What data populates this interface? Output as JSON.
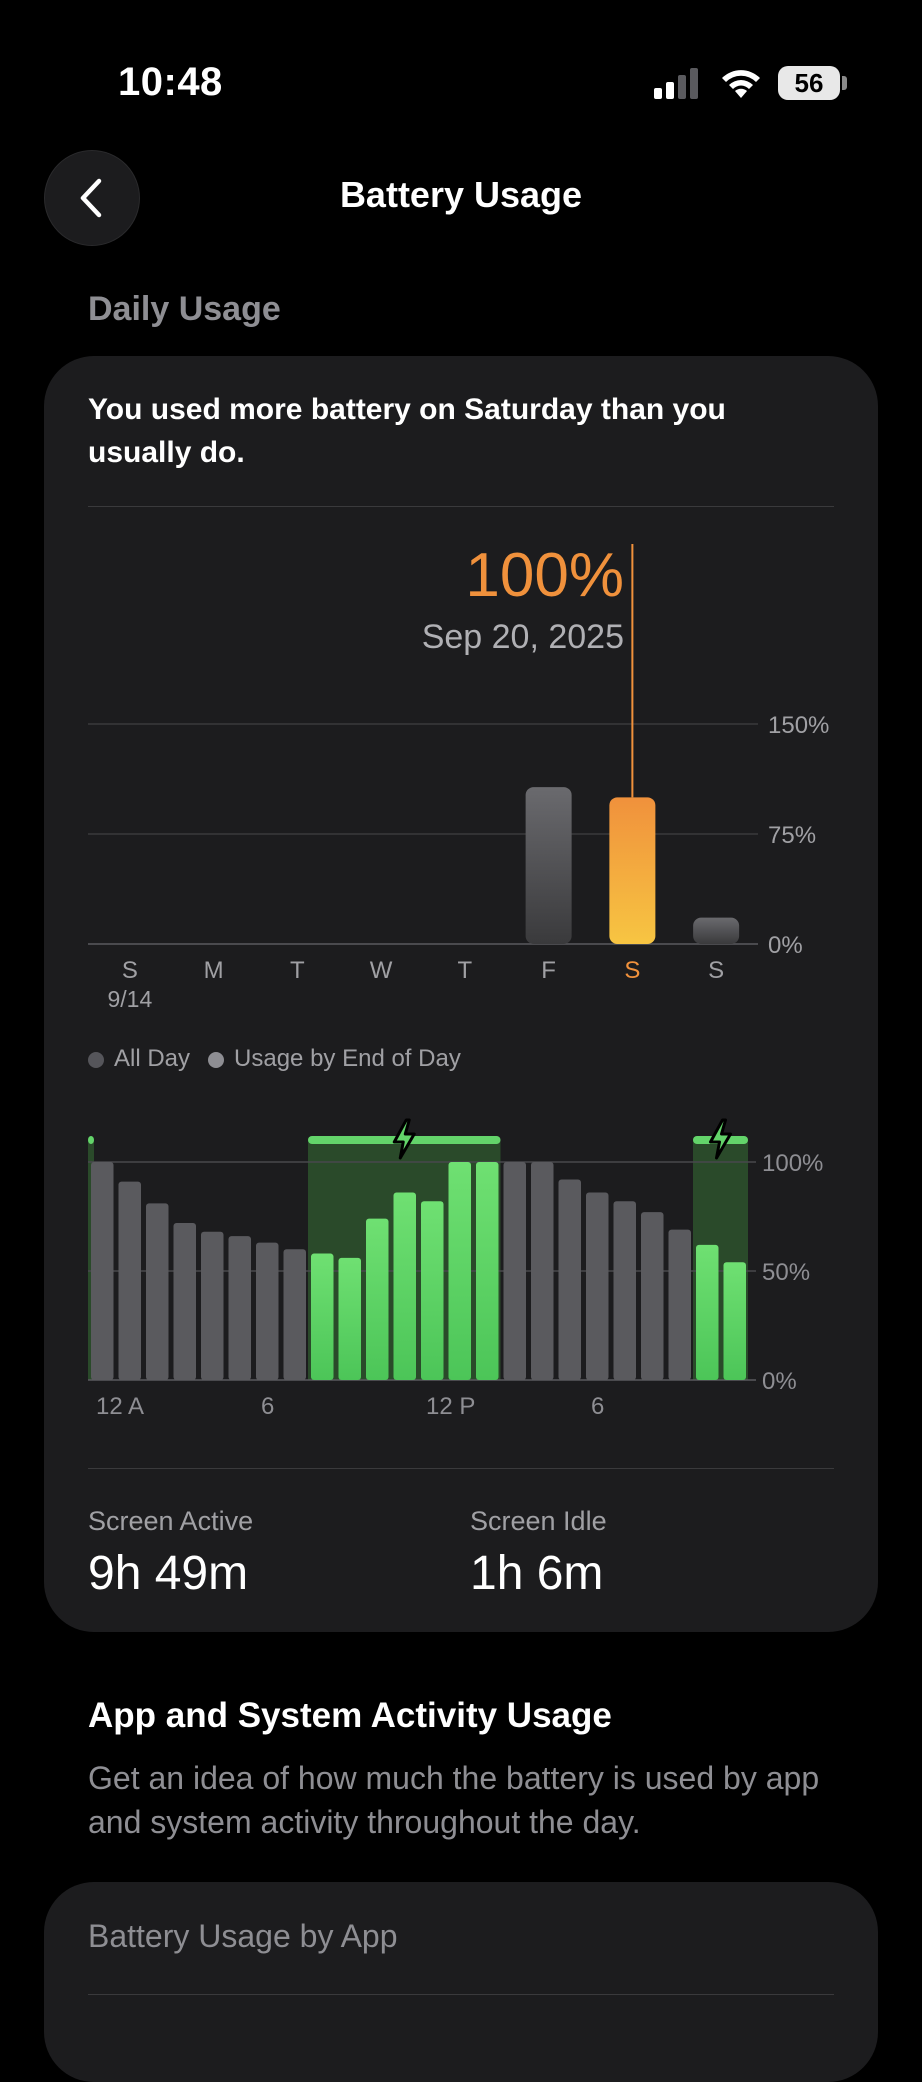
{
  "status_bar": {
    "time": "10:48",
    "battery_percent": "56"
  },
  "nav": {
    "title": "Battery Usage"
  },
  "daily_usage": {
    "header": "Daily Usage",
    "insight": "You used more battery on Saturday than you usually do.",
    "selected_value": "100%",
    "selected_date": "Sep 20, 2025"
  },
  "legend": {
    "all_day": "All Day",
    "end_of_day": "Usage by End of Day"
  },
  "stats": {
    "screen_active_label": "Screen Active",
    "screen_active_value": "9h 49m",
    "screen_idle_label": "Screen Idle",
    "screen_idle_value": "1h 6m"
  },
  "activity_section": {
    "title": "App and System Activity Usage",
    "description": "Get an idea of how much the battery is used by app and system activity throughout the day.",
    "card_title": "Battery Usage by App"
  },
  "colors": {
    "accent": "#f0913c",
    "charging_green": "#63d46a",
    "bar_gray": "#5a5a5e"
  },
  "chart_data": [
    {
      "type": "bar",
      "categories": [
        "S",
        "M",
        "T",
        "W",
        "T",
        "F",
        "S",
        "S"
      ],
      "category_sublabels": [
        "9/14",
        "",
        "",
        "",
        "",
        "",
        "",
        ""
      ],
      "values": [
        0,
        0,
        0,
        0,
        0,
        107,
        100,
        18
      ],
      "selected_index": 6,
      "ylim": [
        0,
        150
      ],
      "yticks": [
        "150%",
        "75%",
        "0%"
      ],
      "ytick_values": [
        150,
        75,
        0
      ],
      "grid": true
    },
    {
      "type": "bar",
      "x_ticks": [
        "12 A",
        "6",
        "12 P",
        "6"
      ],
      "x_tick_hours": [
        0,
        6,
        12,
        18
      ],
      "values": [
        100,
        91,
        81,
        72,
        68,
        66,
        63,
        60,
        58,
        56,
        74,
        86,
        82,
        100,
        100,
        100,
        100,
        92,
        86,
        82,
        77,
        69,
        62,
        54
      ],
      "charging": [
        false,
        false,
        false,
        false,
        false,
        false,
        false,
        false,
        true,
        true,
        true,
        true,
        true,
        true,
        true,
        false,
        false,
        false,
        false,
        false,
        false,
        false,
        true,
        true
      ],
      "charging_periods": [
        [
          0,
          0.05
        ],
        [
          8,
          15
        ],
        [
          22,
          24
        ]
      ],
      "ylim": [
        0,
        100
      ],
      "yticks": [
        "100%",
        "50%",
        "0%"
      ],
      "ytick_values": [
        100,
        50,
        0
      ],
      "grid": true
    }
  ]
}
